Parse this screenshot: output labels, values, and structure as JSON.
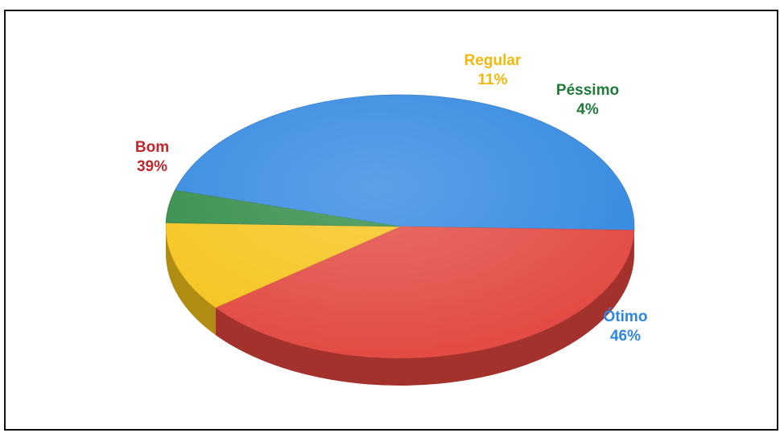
{
  "chart_data": {
    "type": "pie",
    "style": "3d",
    "title": "",
    "slices": [
      {
        "label": "Ótimo",
        "value": 46,
        "value_label": "46%",
        "color": "#2f86e0",
        "label_color": "#2f86e0"
      },
      {
        "label": "Bom",
        "value": 39,
        "value_label": "39%",
        "color": "#e2463f",
        "label_color": "#c1272d"
      },
      {
        "label": "Regular",
        "value": 11,
        "value_label": "11%",
        "color": "#f6c31a",
        "label_color": "#f3b80d"
      },
      {
        "label": "Péssimo",
        "value": 4,
        "value_label": "4%",
        "color": "#2e8a45",
        "label_color": "#1f7a3a"
      }
    ]
  }
}
